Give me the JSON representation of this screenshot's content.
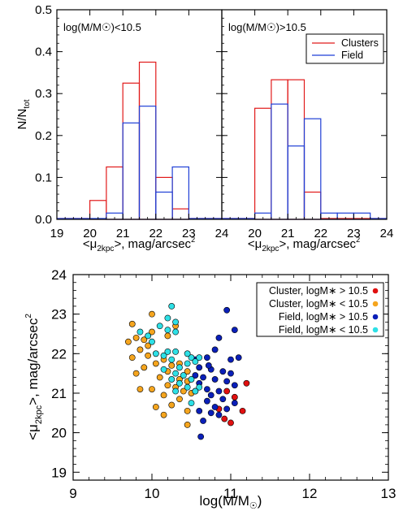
{
  "colors": {
    "clusters": "#e11a1a",
    "field": "#1f3fd6",
    "cluster_hi": "#e01010",
    "cluster_lo": "#f5a51e",
    "field_hi": "#0a1fb8",
    "field_lo": "#2ee0e6"
  },
  "chart_data": [
    {
      "type": "histogram",
      "panel": "left",
      "annotation": "log(M/M☉)<10.5",
      "ylabel": "N/N_tot",
      "xlabel": "<μ_2kpc>, mag/arcsec²",
      "xlim": [
        19,
        24
      ],
      "ylim": [
        0,
        0.5
      ],
      "x_ticks": [
        "19",
        "20",
        "21",
        "22",
        "23",
        "24"
      ],
      "y_ticks": [
        "0.0",
        "0.1",
        "0.2",
        "0.3",
        "0.4",
        "0.5"
      ],
      "bin_edges": [
        19.0,
        19.5,
        20.0,
        20.5,
        21.0,
        21.5,
        22.0,
        22.5,
        23.0,
        23.5,
        24.0
      ],
      "series": [
        {
          "name": "Clusters",
          "color": "#e11a1a",
          "values": [
            0,
            0,
            0.045,
            0.125,
            0.325,
            0.375,
            0.1,
            0.025,
            0,
            0
          ]
        },
        {
          "name": "Field",
          "color": "#1f3fd6",
          "values": [
            0,
            0,
            0,
            0.015,
            0.23,
            0.27,
            0.065,
            0.125,
            0,
            0
          ]
        }
      ]
    },
    {
      "type": "histogram",
      "panel": "right",
      "annotation": "log(M/M☉)>10.5",
      "xlabel": "<μ_2kpc>, mag/arcsec²",
      "xlim": [
        19,
        24
      ],
      "ylim": [
        0,
        0.5
      ],
      "x_ticks": [
        "20",
        "21",
        "22",
        "23",
        "24"
      ],
      "bin_edges": [
        19.0,
        19.5,
        20.0,
        20.5,
        21.0,
        21.5,
        22.0,
        22.5,
        23.0,
        23.5,
        24.0
      ],
      "legend": [
        "Clusters",
        "Field"
      ],
      "legend_position": "top-right",
      "series": [
        {
          "name": "Clusters",
          "color": "#e11a1a",
          "values": [
            0,
            0,
            0.265,
            0.333,
            0.333,
            0.065,
            0,
            0,
            0,
            0
          ]
        },
        {
          "name": "Field",
          "color": "#1f3fd6",
          "values": [
            0,
            0,
            0.015,
            0.275,
            0.175,
            0.24,
            0.015,
            0.015,
            0.015,
            0
          ]
        }
      ]
    },
    {
      "type": "scatter",
      "panel": "bottom",
      "xlabel": "log(M/M☉)",
      "ylabel": "<μ_2kpc>, mag/arcsec²",
      "xlim": [
        9,
        13
      ],
      "ylim": [
        18.8,
        24
      ],
      "x_ticks": [
        "9",
        "10",
        "11",
        "12",
        "13"
      ],
      "y_ticks": [
        "19",
        "20",
        "21",
        "22",
        "23",
        "24"
      ],
      "legend_position": "top-right",
      "series": [
        {
          "name": "Cluster, logM∗ > 10.5",
          "color": "#e01010",
          "points": [
            [
              11.2,
              21.25
            ],
            [
              11.15,
              20.55
            ],
            [
              11.05,
              20.9
            ],
            [
              10.92,
              20.35
            ],
            [
              11.0,
              20.25
            ],
            [
              10.85,
              20.6
            ],
            [
              10.95,
              21.05
            ]
          ]
        },
        {
          "name": "Cluster, logM∗ < 10.5",
          "color": "#f5a51e",
          "points": [
            [
              9.7,
              22.3
            ],
            [
              9.8,
              22.4
            ],
            [
              9.9,
              22.35
            ],
            [
              10.0,
              22.55
            ],
            [
              10.2,
              22.45
            ],
            [
              9.85,
              22.1
            ],
            [
              9.95,
              22.2
            ],
            [
              9.75,
              21.9
            ],
            [
              9.95,
              21.95
            ],
            [
              10.05,
              21.75
            ],
            [
              10.15,
              21.85
            ],
            [
              10.25,
              21.7
            ],
            [
              10.35,
              21.75
            ],
            [
              10.45,
              21.55
            ],
            [
              10.1,
              21.4
            ],
            [
              10.2,
              21.2
            ],
            [
              10.3,
              21.15
            ],
            [
              10.4,
              21.05
            ],
            [
              10.5,
              21.0
            ],
            [
              9.8,
              21.5
            ],
            [
              10.0,
              21.1
            ],
            [
              9.85,
              21.1
            ],
            [
              10.15,
              20.95
            ],
            [
              10.25,
              20.7
            ],
            [
              10.35,
              20.85
            ],
            [
              10.45,
              20.55
            ],
            [
              10.45,
              20.2
            ],
            [
              10.05,
              20.65
            ],
            [
              10.15,
              20.45
            ],
            [
              10.35,
              21.35
            ],
            [
              10.2,
              21.55
            ],
            [
              9.9,
              21.65
            ],
            [
              10.45,
              21.3
            ],
            [
              10.0,
              23.0
            ],
            [
              9.75,
              22.75
            ],
            [
              10.3,
              22.7
            ]
          ]
        },
        {
          "name": "Field, logM∗ > 10.5",
          "color": "#0a1fb8",
          "points": [
            [
              10.95,
              23.1
            ],
            [
              11.05,
              22.6
            ],
            [
              10.85,
              22.4
            ],
            [
              10.8,
              22.1
            ],
            [
              10.7,
              21.9
            ],
            [
              10.55,
              21.85
            ],
            [
              11.0,
              21.85
            ],
            [
              10.6,
              21.65
            ],
            [
              10.75,
              21.6
            ],
            [
              10.9,
              21.55
            ],
            [
              10.65,
              21.4
            ],
            [
              10.8,
              21.35
            ],
            [
              10.95,
              21.3
            ],
            [
              11.05,
              21.2
            ],
            [
              10.6,
              21.25
            ],
            [
              10.7,
              21.1
            ],
            [
              10.85,
              21.05
            ],
            [
              10.55,
              21.05
            ],
            [
              10.75,
              20.95
            ],
            [
              10.9,
              20.85
            ],
            [
              11.05,
              20.75
            ],
            [
              10.7,
              20.8
            ],
            [
              10.8,
              20.65
            ],
            [
              10.95,
              20.6
            ],
            [
              10.85,
              20.45
            ],
            [
              10.75,
              20.5
            ],
            [
              10.6,
              20.55
            ],
            [
              10.65,
              20.3
            ],
            [
              10.62,
              19.9
            ],
            [
              11.0,
              21.5
            ],
            [
              11.1,
              21.9
            ],
            [
              10.55,
              21.45
            ],
            [
              10.72,
              21.7
            ]
          ]
        },
        {
          "name": "Field, logM∗ < 10.5",
          "color": "#2ee0e6",
          "points": [
            [
              10.25,
              23.2
            ],
            [
              10.2,
              22.9
            ],
            [
              10.3,
              22.8
            ],
            [
              10.1,
              22.7
            ],
            [
              10.2,
              22.6
            ],
            [
              10.3,
              22.55
            ],
            [
              9.85,
              22.55
            ],
            [
              9.95,
              22.45
            ],
            [
              10.0,
              22.3
            ],
            [
              10.05,
              22.0
            ],
            [
              10.15,
              21.95
            ],
            [
              10.2,
              22.05
            ],
            [
              10.25,
              21.85
            ],
            [
              10.35,
              21.65
            ],
            [
              10.5,
              21.9
            ],
            [
              10.55,
              21.8
            ],
            [
              10.6,
              21.9
            ],
            [
              10.45,
              21.75
            ],
            [
              10.3,
              21.5
            ],
            [
              10.4,
              21.45
            ],
            [
              10.25,
              21.35
            ],
            [
              10.35,
              21.25
            ],
            [
              10.45,
              21.15
            ],
            [
              10.5,
              21.35
            ],
            [
              10.6,
              21.15
            ],
            [
              10.55,
              21.05
            ],
            [
              10.3,
              21.05
            ],
            [
              10.5,
              20.75
            ],
            [
              10.15,
              21.6
            ],
            [
              10.3,
              22.05
            ],
            [
              10.45,
              22.0
            ]
          ]
        }
      ]
    }
  ]
}
